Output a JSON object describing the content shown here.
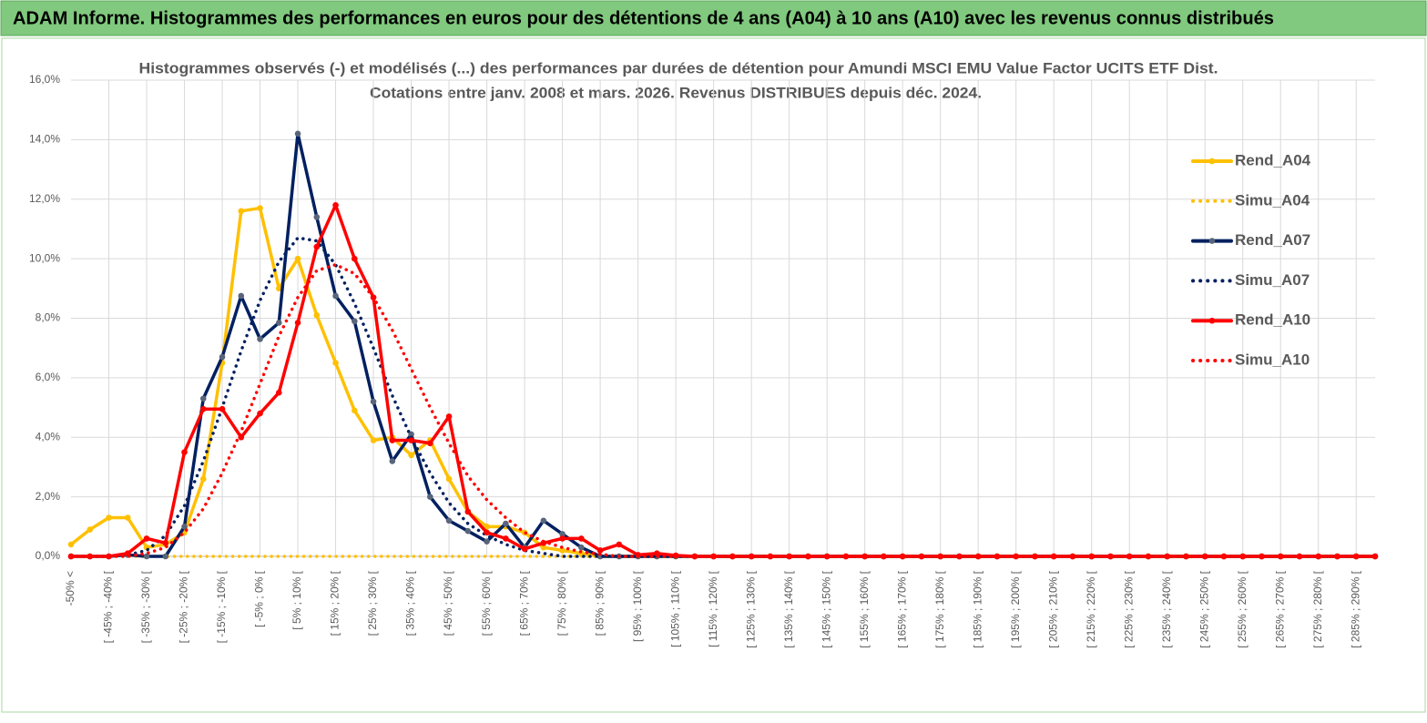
{
  "header": {
    "title": "ADAM Informe. Histogrammes des performances en euros pour des détentions de 4 ans (A04) à 10 ans (A10) avec les revenus connus distribués"
  },
  "chart_data": {
    "type": "line",
    "title": "Histogrammes observés (-) et modélisés (...) des performances par durées de détention pour Amundi MSCI EMU Value Factor UCITS ETF Dist.",
    "subtitle": "Cotations entre janv. 2008 et mars. 2026. Revenus DISTRIBUES depuis déc. 2024.",
    "categories": [
      "-50% <",
      null,
      "[ -45% ; -40% [",
      null,
      "[ -35% ; -30% [",
      null,
      "[ -25% ; -20% [",
      null,
      "[ -15% ; -10% [",
      null,
      "[ -5% ; 0% [",
      null,
      "[ 5% ; 10% [",
      null,
      "[ 15% ; 20% [",
      null,
      "[ 25% ; 30% [",
      null,
      "[ 35% ; 40% [",
      null,
      "[ 45% ; 50% [",
      null,
      "[ 55% ; 60% [",
      null,
      "[ 65% ; 70% [",
      null,
      "[ 75% ; 80% [",
      null,
      "[ 85% ; 90% [",
      null,
      "[ 95% ; 100% [",
      null,
      "[ 105% ; 110% [",
      null,
      "[ 115% ; 120% [",
      null,
      "[ 125% ; 130% [",
      null,
      "[ 135% ; 140% [",
      null,
      "[ 145% ; 150% [",
      null,
      "[ 155% ; 160% [",
      null,
      "[ 165% ; 170% [",
      null,
      "[ 175% ; 180% [",
      null,
      "[ 185% ; 190% [",
      null,
      "[ 195% ; 200% [",
      null,
      "[ 205% ; 210% [",
      null,
      "[ 215% ; 220% [",
      null,
      "[ 225% ; 230% [",
      null,
      "[ 235% ; 240% [",
      null,
      "[ 245% ; 250% [",
      null,
      "[ 255% ; 260% [",
      null,
      "[ 265% ; 270% [",
      null,
      "[ 275% ; 280% [",
      null,
      "[ 285% ; 290% [",
      null
    ],
    "ylim": [
      0,
      16
    ],
    "yticks": [
      {
        "value": 0,
        "label": "0,0%"
      },
      {
        "value": 2,
        "label": "2,0%"
      },
      {
        "value": 4,
        "label": "4,0%"
      },
      {
        "value": 6,
        "label": "6,0%"
      },
      {
        "value": 8,
        "label": "8,0%"
      },
      {
        "value": 10,
        "label": "10,0%"
      },
      {
        "value": 12,
        "label": "12,0%"
      },
      {
        "value": 14,
        "label": "14,0%"
      },
      {
        "value": 16,
        "label": "16,0%"
      }
    ],
    "grid": true,
    "legend": "right",
    "series": [
      {
        "name": "Rend_A04",
        "color": "#FFC000",
        "marker_color": "#FFC000",
        "style": "solid",
        "markers": true,
        "values": [
          0.4,
          0.9,
          1.3,
          1.3,
          0.3,
          0.4,
          0.8,
          2.6,
          6.5,
          11.6,
          11.7,
          9.0,
          10.0,
          8.1,
          6.5,
          4.9,
          3.9,
          4.0,
          3.4,
          3.9,
          2.6,
          1.5,
          1.0,
          1.0,
          0.8,
          0.3,
          0.2,
          0.1,
          0,
          0,
          0,
          0,
          0,
          0,
          0,
          0,
          0,
          0,
          0,
          0,
          0,
          0,
          0,
          0,
          0,
          0,
          0,
          0,
          0,
          0,
          0,
          0,
          0,
          0,
          0,
          0,
          0,
          0,
          0,
          0,
          0,
          0,
          0,
          0,
          0,
          0,
          0,
          0,
          0,
          0
        ]
      },
      {
        "name": "Simu_A04",
        "color": "#FFC000",
        "style": "dotted",
        "markers": false,
        "values": [
          0,
          0,
          0,
          0,
          0,
          0,
          0,
          0,
          0,
          0,
          0,
          0,
          0,
          0,
          0,
          0,
          0,
          0,
          0,
          0,
          0,
          0,
          0,
          0,
          0,
          0,
          0,
          0,
          0,
          0,
          0,
          0,
          0,
          0,
          0,
          0,
          0,
          0,
          0,
          0,
          0,
          0,
          0,
          0,
          0,
          0,
          0,
          0,
          0,
          0,
          0,
          0,
          0,
          0,
          0,
          0,
          0,
          0,
          0,
          0,
          0,
          0,
          0,
          0,
          0,
          0,
          0,
          0,
          0,
          0
        ]
      },
      {
        "name": "Rend_A07",
        "color": "#002060",
        "marker_color": "#59657a",
        "style": "solid",
        "markers": true,
        "values": [
          0,
          0,
          0,
          0.05,
          0,
          0,
          1.0,
          5.3,
          6.7,
          8.75,
          7.3,
          7.85,
          14.2,
          11.4,
          8.75,
          7.9,
          5.2,
          3.2,
          4.1,
          2.0,
          1.2,
          0.85,
          0.5,
          1.1,
          0.3,
          1.2,
          0.75,
          0.3,
          0,
          0,
          0,
          0,
          0,
          0,
          0,
          0,
          0,
          0,
          0,
          0,
          0,
          0,
          0,
          0,
          0,
          0,
          0,
          0,
          0,
          0,
          0,
          0,
          0,
          0,
          0,
          0,
          0,
          0,
          0,
          0,
          0,
          0,
          0,
          0,
          0,
          0,
          0,
          0,
          0,
          0
        ]
      },
      {
        "name": "Simu_A07",
        "color": "#002060",
        "style": "dotted",
        "markers": false,
        "values": [
          0,
          0,
          0,
          0.05,
          0.2,
          0.7,
          1.7,
          3.2,
          5.0,
          6.9,
          8.6,
          9.9,
          10.7,
          10.6,
          9.8,
          8.5,
          7.0,
          5.4,
          4.0,
          2.8,
          1.8,
          1.1,
          0.7,
          0.4,
          0.2,
          0.1,
          0,
          0,
          0,
          0,
          0,
          0,
          0,
          0,
          0,
          0,
          0,
          0,
          0,
          0,
          0,
          0,
          0,
          0,
          0,
          0,
          0,
          0,
          0,
          0,
          0,
          0,
          0,
          0,
          0,
          0,
          0,
          0,
          0,
          0,
          0,
          0,
          0,
          0,
          0,
          0,
          0,
          0,
          0,
          0
        ]
      },
      {
        "name": "Rend_A10",
        "color": "#FF0000",
        "marker_color": "#FF0000",
        "style": "solid",
        "markers": true,
        "values": [
          0,
          0,
          0,
          0.1,
          0.6,
          0.45,
          3.5,
          4.95,
          4.95,
          4.0,
          4.8,
          5.5,
          7.85,
          10.4,
          11.8,
          10.0,
          8.7,
          3.9,
          3.9,
          3.8,
          4.7,
          1.5,
          0.8,
          0.6,
          0.25,
          0.45,
          0.6,
          0.6,
          0.2,
          0.4,
          0.05,
          0.1,
          0.03,
          0,
          0,
          0,
          0,
          0,
          0,
          0,
          0,
          0,
          0,
          0,
          0,
          0,
          0,
          0,
          0,
          0,
          0,
          0,
          0,
          0,
          0,
          0,
          0,
          0,
          0,
          0,
          0,
          0,
          0,
          0,
          0,
          0,
          0,
          0,
          0,
          0
        ]
      },
      {
        "name": "Simu_A10",
        "color": "#FF0000",
        "style": "dotted",
        "markers": false,
        "values": [
          0,
          0,
          0,
          0,
          0.1,
          0.3,
          0.8,
          1.6,
          2.8,
          4.2,
          5.8,
          7.4,
          8.7,
          9.6,
          9.8,
          9.5,
          8.7,
          7.6,
          6.3,
          5.0,
          3.8,
          2.7,
          1.9,
          1.3,
          0.8,
          0.5,
          0.3,
          0.15,
          0.07,
          0,
          0,
          0,
          0,
          0,
          0,
          0,
          0,
          0,
          0,
          0,
          0,
          0,
          0,
          0,
          0,
          0,
          0,
          0,
          0,
          0,
          0,
          0,
          0,
          0,
          0,
          0,
          0,
          0,
          0,
          0,
          0,
          0,
          0,
          0,
          0,
          0,
          0,
          0,
          0,
          0
        ]
      }
    ]
  }
}
